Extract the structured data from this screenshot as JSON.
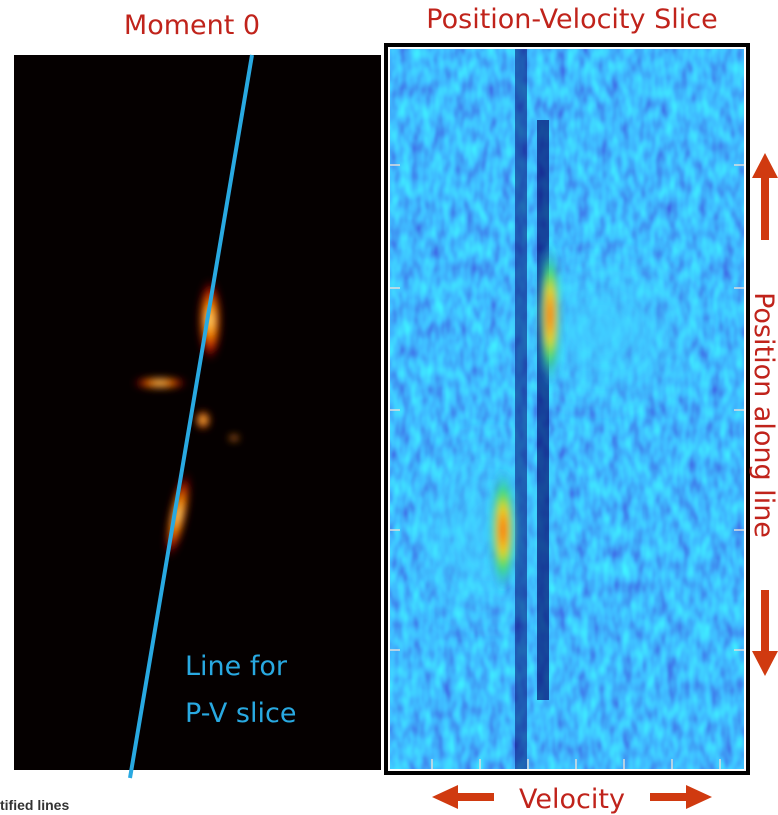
{
  "panels": [
    {
      "title": "Moment 0",
      "annotation": [
        "Line for",
        "P-V slice"
      ]
    },
    {
      "title": "Position-Velocity Slice",
      "y_axis_label": "Position along line",
      "x_axis_label": "Velocity"
    }
  ],
  "footer": "tified lines"
}
